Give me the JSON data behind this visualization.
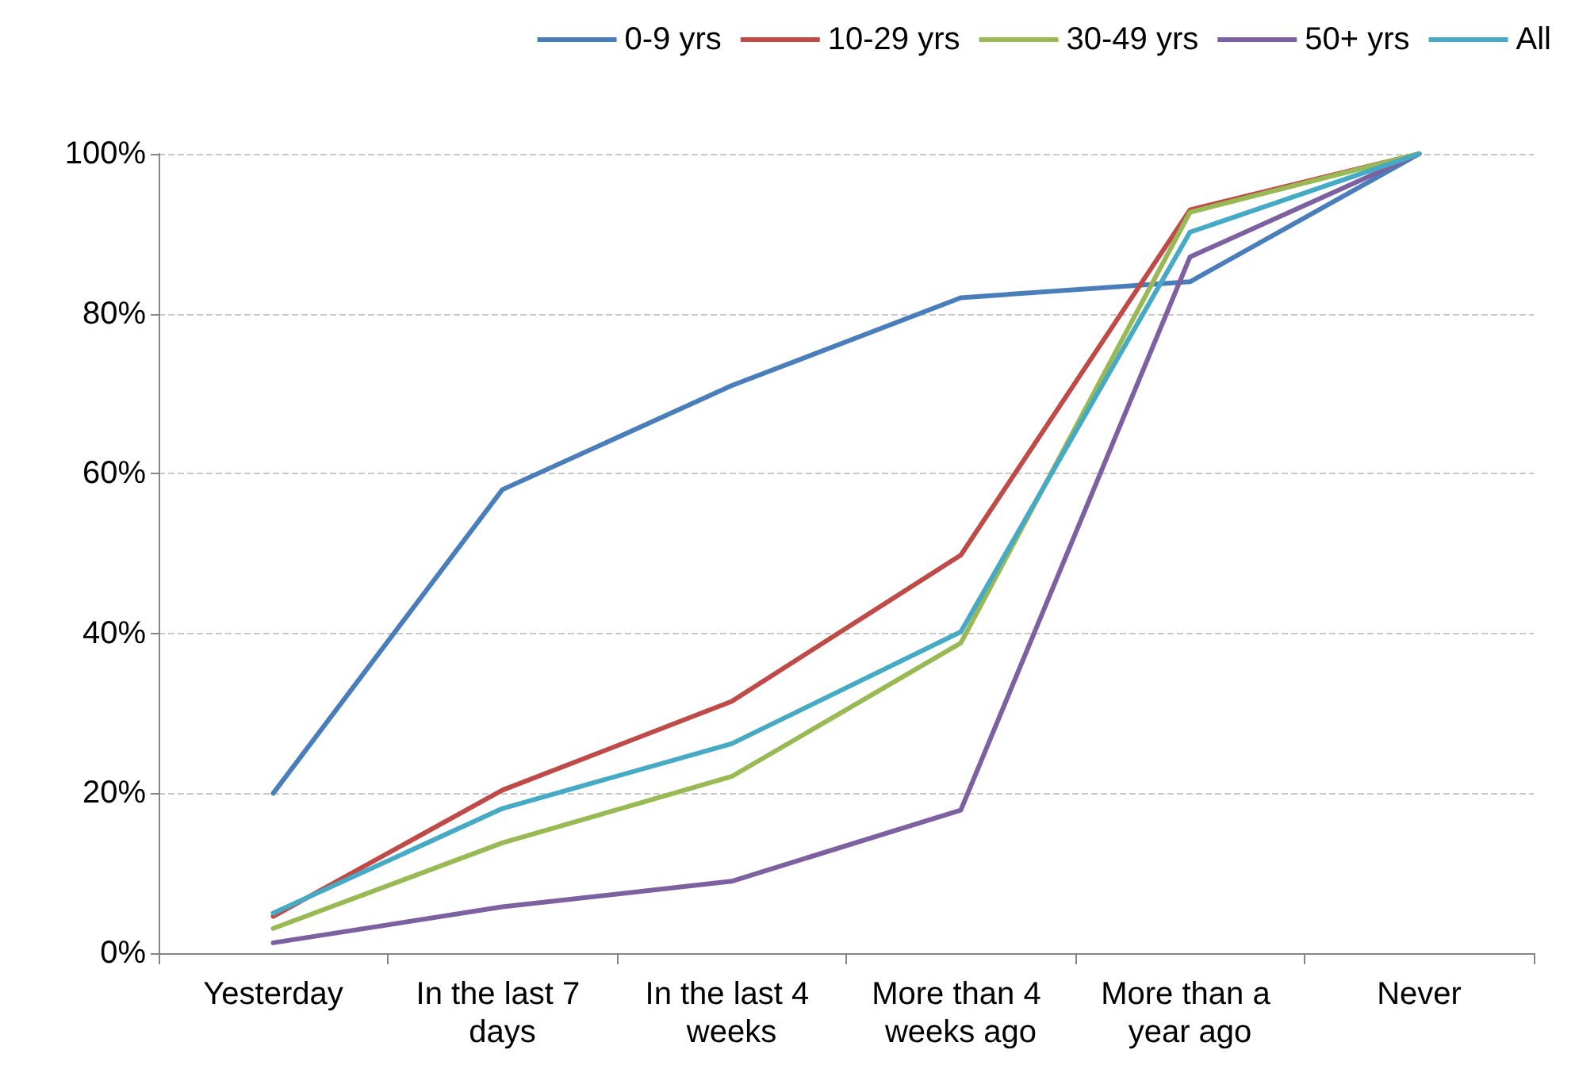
{
  "chart_data": {
    "type": "line",
    "categories": [
      "Yesterday",
      "In the last 7 days",
      "In the last 4 weeks",
      "More than 4 weeks ago",
      "More than a year ago",
      "Never"
    ],
    "series": [
      {
        "name": "0-9 yrs",
        "color": "#4a7ebb",
        "values": [
          20,
          58,
          71,
          82,
          84,
          100
        ]
      },
      {
        "name": "10-29 yrs",
        "color": "#be4b48",
        "values": [
          4.6,
          20.4,
          31.5,
          49.8,
          93,
          100
        ]
      },
      {
        "name": "30-49 yrs",
        "color": "#98b954",
        "values": [
          3.1,
          13.8,
          22.1,
          38.8,
          92.7,
          100
        ]
      },
      {
        "name": "50+ yrs",
        "color": "#7d60a0",
        "values": [
          1.3,
          5.8,
          9,
          17.9,
          87.1,
          100
        ]
      },
      {
        "name": "All",
        "color": "#46aac5",
        "values": [
          5,
          18.1,
          26.2,
          40.2,
          90.2,
          100
        ]
      }
    ],
    "ylim": [
      0,
      100
    ],
    "yticks": [
      {
        "value": 0,
        "label": "0%"
      },
      {
        "value": 20,
        "label": "20%"
      },
      {
        "value": 40,
        "label": "40%"
      },
      {
        "value": 60,
        "label": "60%"
      },
      {
        "value": 80,
        "label": "80%"
      },
      {
        "value": 100,
        "label": "100%"
      }
    ],
    "grid": "y",
    "legend": "top right",
    "marker": "none",
    "line_style": "solid"
  }
}
